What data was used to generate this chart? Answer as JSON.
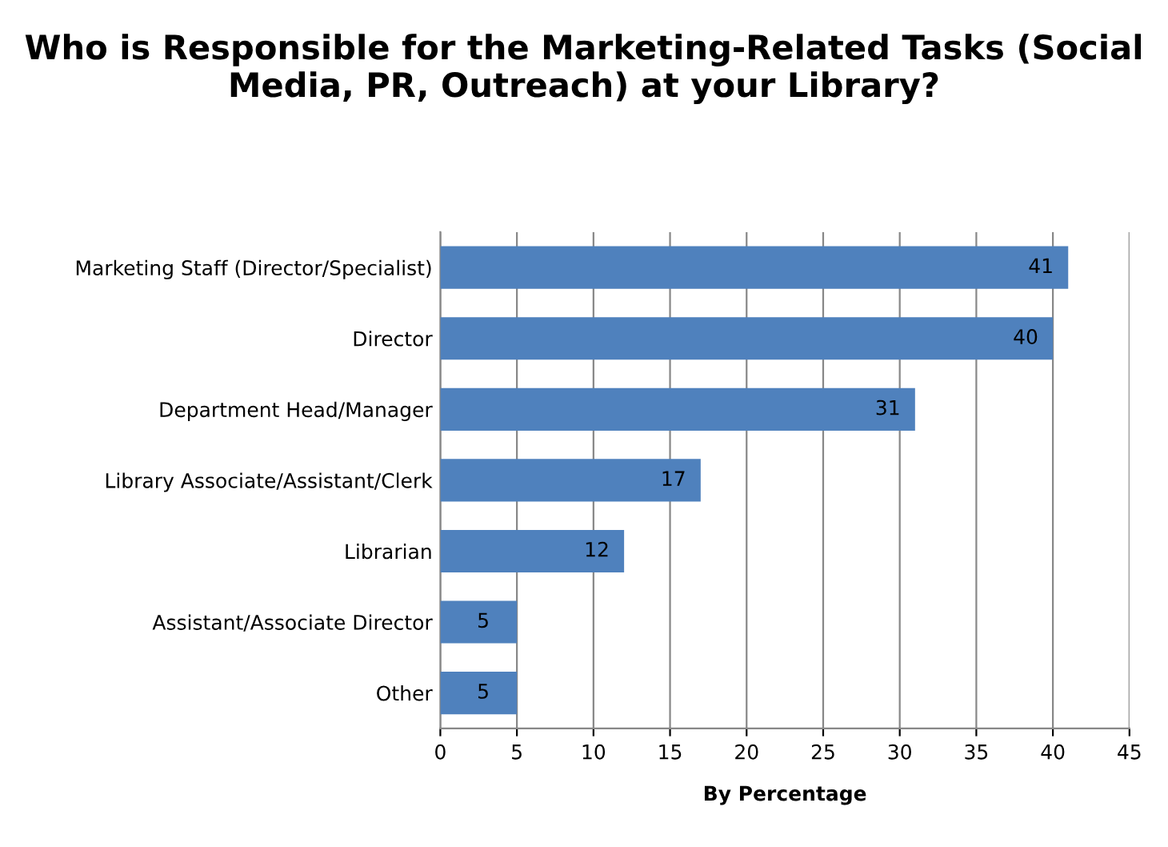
{
  "chart_data": {
    "type": "bar",
    "orientation": "horizontal",
    "title": "Who is Responsible for the Marketing-Related Tasks (Social Media, PR, Outreach) at your Library?",
    "xlabel": "By Percentage",
    "categories": [
      "Marketing Staff (Director/Specialist)",
      "Director",
      "Department Head/Manager",
      "Library Associate/Assistant/Clerk",
      "Librarian",
      "Assistant/Associate Director",
      "Other"
    ],
    "values": [
      41,
      40,
      31,
      17,
      12,
      5,
      5
    ],
    "color": "#4f81bd",
    "xlim": [
      0,
      45
    ],
    "xticks": [
      0,
      5,
      10,
      15,
      20,
      25,
      30,
      35,
      40,
      45
    ],
    "grid": "x",
    "data_labels": true
  }
}
